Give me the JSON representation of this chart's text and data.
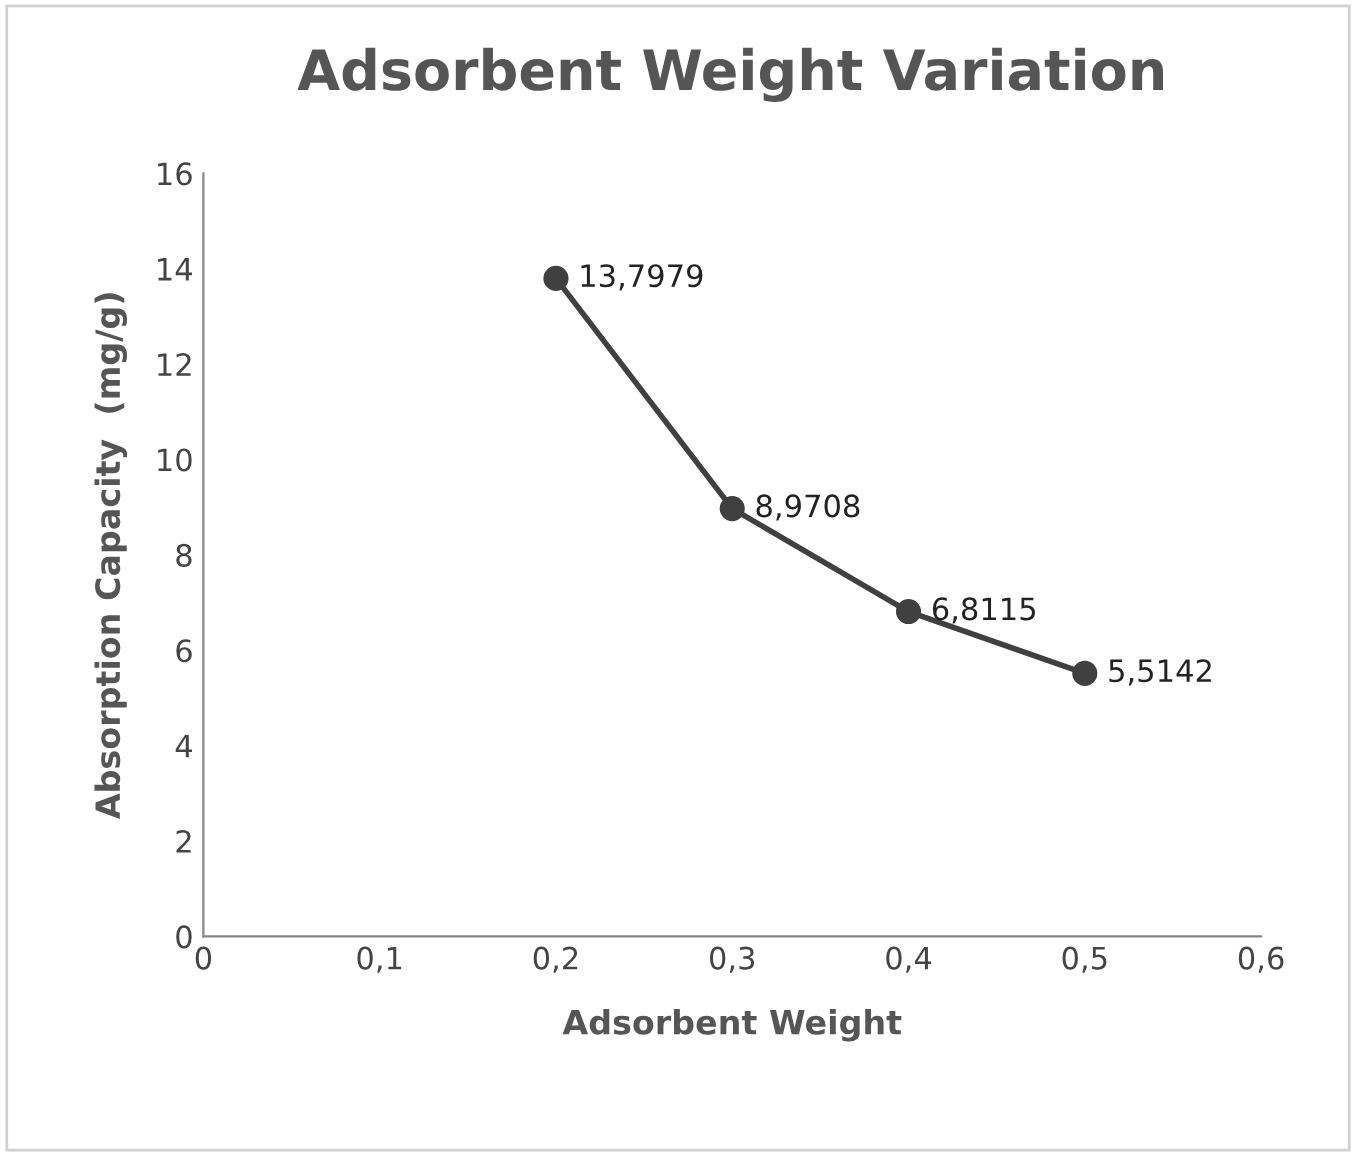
{
  "chart_data": {
    "type": "line",
    "title": "Adsorbent Weight Variation",
    "xlabel": "Adsorbent Weight",
    "ylabel": "Absorption Capacity  (mg/g)",
    "x": [
      0.2,
      0.3,
      0.4,
      0.5
    ],
    "series": [
      {
        "color": "#404040",
        "values": [
          13.7979,
          8.9708,
          6.8115,
          5.5142
        ],
        "value_labels": [
          "13,7979",
          "8,9708",
          "6,8115",
          "5,5142"
        ]
      }
    ],
    "xlim": [
      0,
      0.6
    ],
    "xticks": [
      0,
      {
        "value": 0.1,
        "label": "0,1"
      },
      {
        "value": 0.2,
        "label": "0,2"
      },
      {
        "value": 0.3,
        "label": "0,3"
      },
      {
        "value": 0.4,
        "label": "0,4"
      },
      {
        "value": 0.5,
        "label": "0,5"
      },
      {
        "value": 0.6,
        "label": "0,6"
      }
    ],
    "ylim": [
      0,
      16
    ],
    "yticks": [
      0,
      2,
      4,
      6,
      8,
      10,
      12,
      14,
      16
    ],
    "marker": "circle",
    "line_style": "solid",
    "grid": false,
    "legend": false
  }
}
